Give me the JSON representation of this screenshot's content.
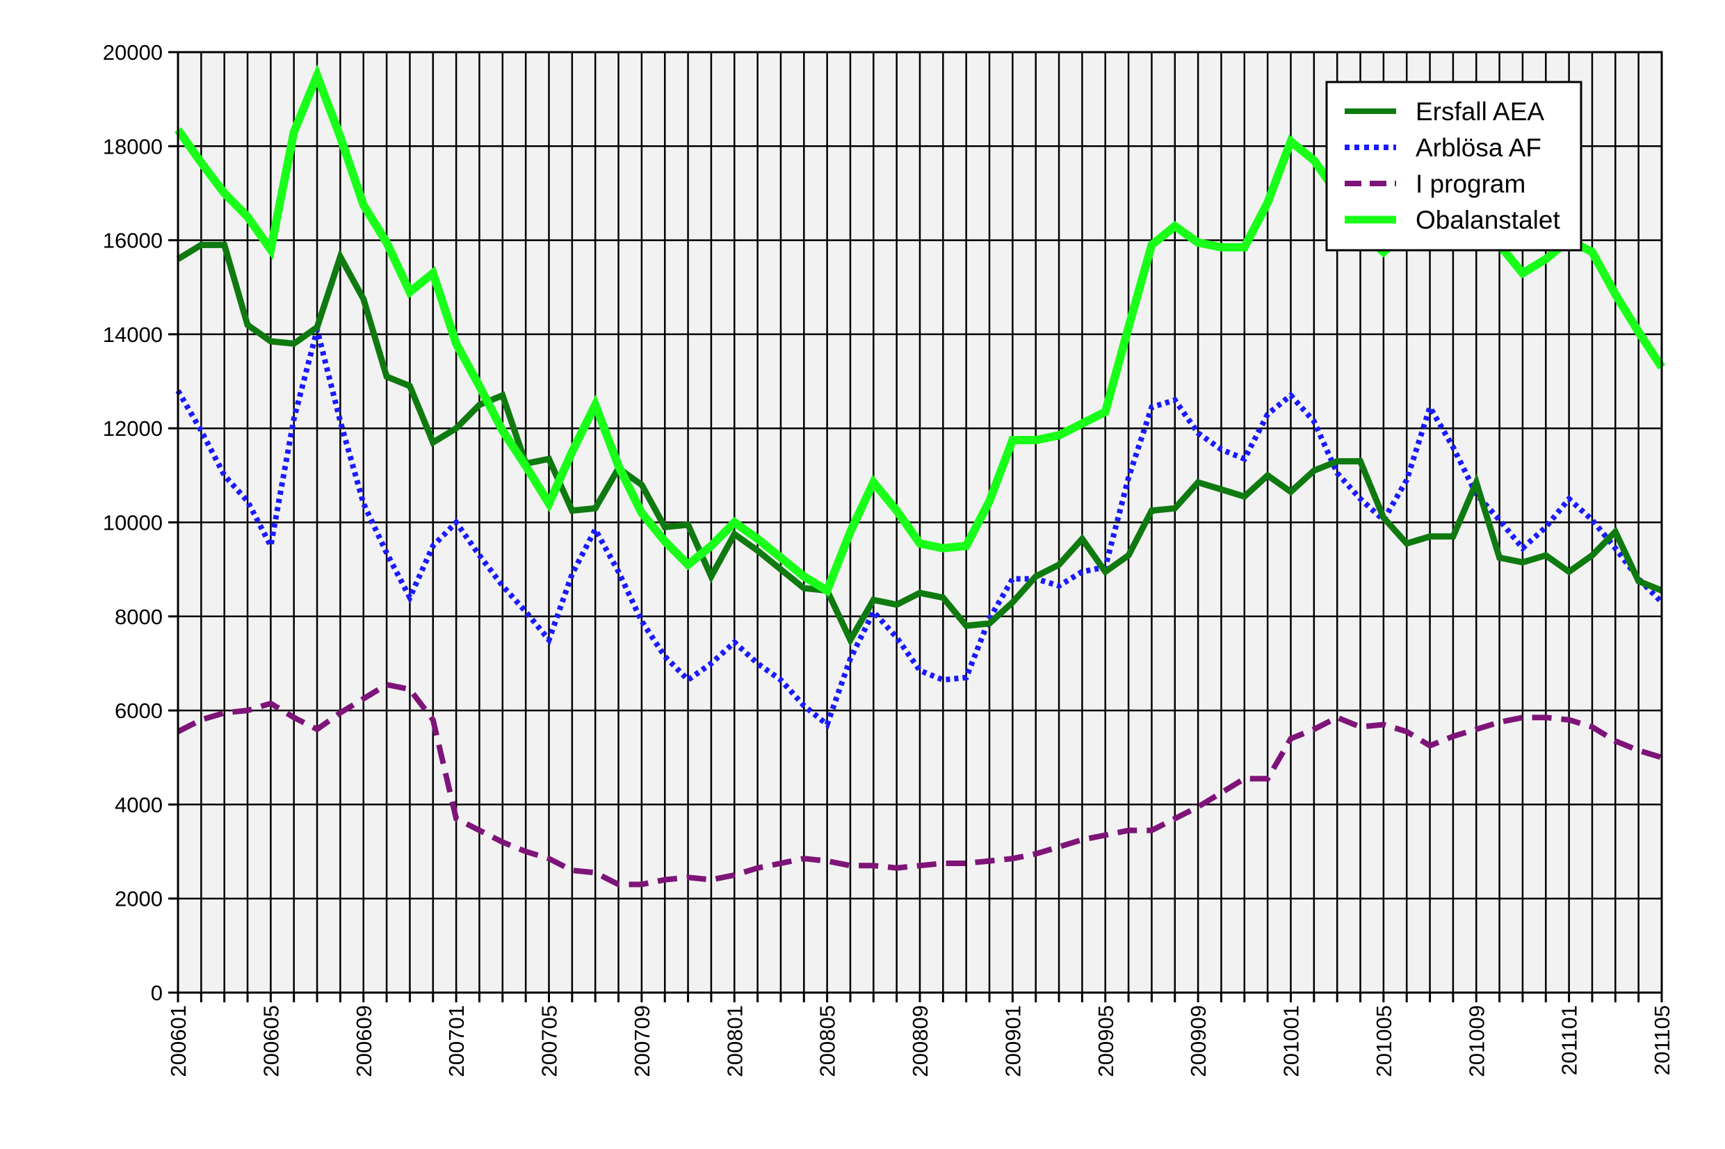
{
  "chart_data": {
    "type": "line",
    "title": "",
    "xlabel": "",
    "ylabel": "",
    "ylim": [
      0,
      20000
    ],
    "yticks": [
      0,
      2000,
      4000,
      6000,
      8000,
      10000,
      12000,
      14000,
      16000,
      18000,
      20000
    ],
    "grid": true,
    "legend_position": "top-right",
    "x": [
      "200601",
      "200602",
      "200603",
      "200604",
      "200605",
      "200606",
      "200607",
      "200608",
      "200609",
      "200610",
      "200611",
      "200612",
      "200701",
      "200702",
      "200703",
      "200704",
      "200705",
      "200706",
      "200707",
      "200708",
      "200709",
      "200710",
      "200711",
      "200712",
      "200801",
      "200802",
      "200803",
      "200804",
      "200805",
      "200806",
      "200807",
      "200808",
      "200809",
      "200810",
      "200811",
      "200812",
      "200901",
      "200902",
      "200903",
      "200904",
      "200905",
      "200906",
      "200907",
      "200908",
      "200909",
      "200910",
      "200911",
      "200912",
      "201001",
      "201002",
      "201003",
      "201004",
      "201005",
      "201006",
      "201007",
      "201008",
      "201009",
      "201010",
      "201011",
      "201012",
      "201101",
      "201102",
      "201103",
      "201104",
      "201105"
    ],
    "xtick_labels": [
      "200601",
      "200605",
      "200609",
      "200701",
      "200705",
      "200709",
      "200801",
      "200805",
      "200809",
      "200901",
      "200905",
      "200909",
      "201001",
      "201005",
      "201009",
      "201101",
      "201105"
    ],
    "series": [
      {
        "name": "Ersfall AEA",
        "color": "#0f7a0f",
        "style": "solid",
        "values": [
          15600,
          15900,
          15900,
          14200,
          13850,
          13800,
          14150,
          15650,
          14750,
          13100,
          12900,
          11700,
          12000,
          12500,
          12700,
          11250,
          11350,
          10250,
          10300,
          11150,
          10800,
          9900,
          9950,
          8850,
          9750,
          9400,
          9000,
          8600,
          8550,
          7500,
          8350,
          8250,
          8500,
          8400,
          7800,
          7850,
          8300,
          8850,
          9100,
          9650,
          8950,
          9300,
          10250,
          10300,
          10850,
          10700,
          10550,
          11000,
          10650,
          11100,
          11300,
          11300,
          10100,
          9550,
          9700,
          9700,
          10850,
          9250,
          9150,
          9300,
          8950,
          9300,
          9800,
          8750,
          8550
        ]
      },
      {
        "name": "Arblösa AF",
        "color": "#1a1aff",
        "style": "dotted",
        "values": [
          12800,
          11950,
          11000,
          10450,
          9500,
          12200,
          14100,
          12150,
          10400,
          9350,
          8400,
          9500,
          10000,
          9300,
          8650,
          8100,
          7500,
          8900,
          9850,
          8950,
          7900,
          7150,
          6650,
          7000,
          7450,
          7000,
          6650,
          6100,
          5700,
          7100,
          8100,
          7550,
          6850,
          6650,
          6700,
          7950,
          8800,
          8800,
          8650,
          8950,
          9050,
          10950,
          12450,
          12600,
          11900,
          11550,
          11350,
          12300,
          12700,
          12150,
          11050,
          10500,
          10050,
          10900,
          12450,
          11600,
          10600,
          10050,
          9450,
          9900,
          10500,
          10050,
          9450,
          8800,
          8300
        ]
      },
      {
        "name": "I program",
        "color": "#7e1478",
        "style": "dashed",
        "values": [
          5550,
          5800,
          5950,
          6000,
          6150,
          5850,
          5600,
          5950,
          6250,
          6550,
          6450,
          5800,
          3700,
          3450,
          3200,
          3000,
          2850,
          2600,
          2550,
          2300,
          2300,
          2400,
          2450,
          2400,
          2500,
          2650,
          2750,
          2850,
          2800,
          2700,
          2700,
          2650,
          2700,
          2750,
          2750,
          2800,
          2850,
          2950,
          3100,
          3250,
          3350,
          3450,
          3450,
          3700,
          3950,
          4250,
          4550,
          4550,
          5400,
          5600,
          5850,
          5650,
          5700,
          5550,
          5250,
          5450,
          5600,
          5750,
          5850,
          5850,
          5800,
          5650,
          5350,
          5150,
          5000
        ]
      },
      {
        "name": "Obalanstalet",
        "color": "#19ff19",
        "style": "solid",
        "values": [
          18350,
          17650,
          17000,
          16500,
          15800,
          18300,
          19500,
          18200,
          16750,
          15950,
          14900,
          15300,
          13800,
          12900,
          11950,
          11200,
          10400,
          11500,
          12500,
          11200,
          10200,
          9600,
          9100,
          9500,
          10000,
          9650,
          9250,
          8850,
          8550,
          9800,
          10850,
          10250,
          9550,
          9450,
          9500,
          10450,
          11750,
          11750,
          11850,
          12100,
          12350,
          14150,
          15900,
          16300,
          15950,
          15850,
          15850,
          16800,
          18100,
          17700,
          17000,
          16200,
          15750,
          16200,
          16650,
          16850,
          16300,
          15900,
          15300,
          15600,
          16000,
          15750,
          14850,
          14050,
          13300
        ]
      }
    ]
  }
}
